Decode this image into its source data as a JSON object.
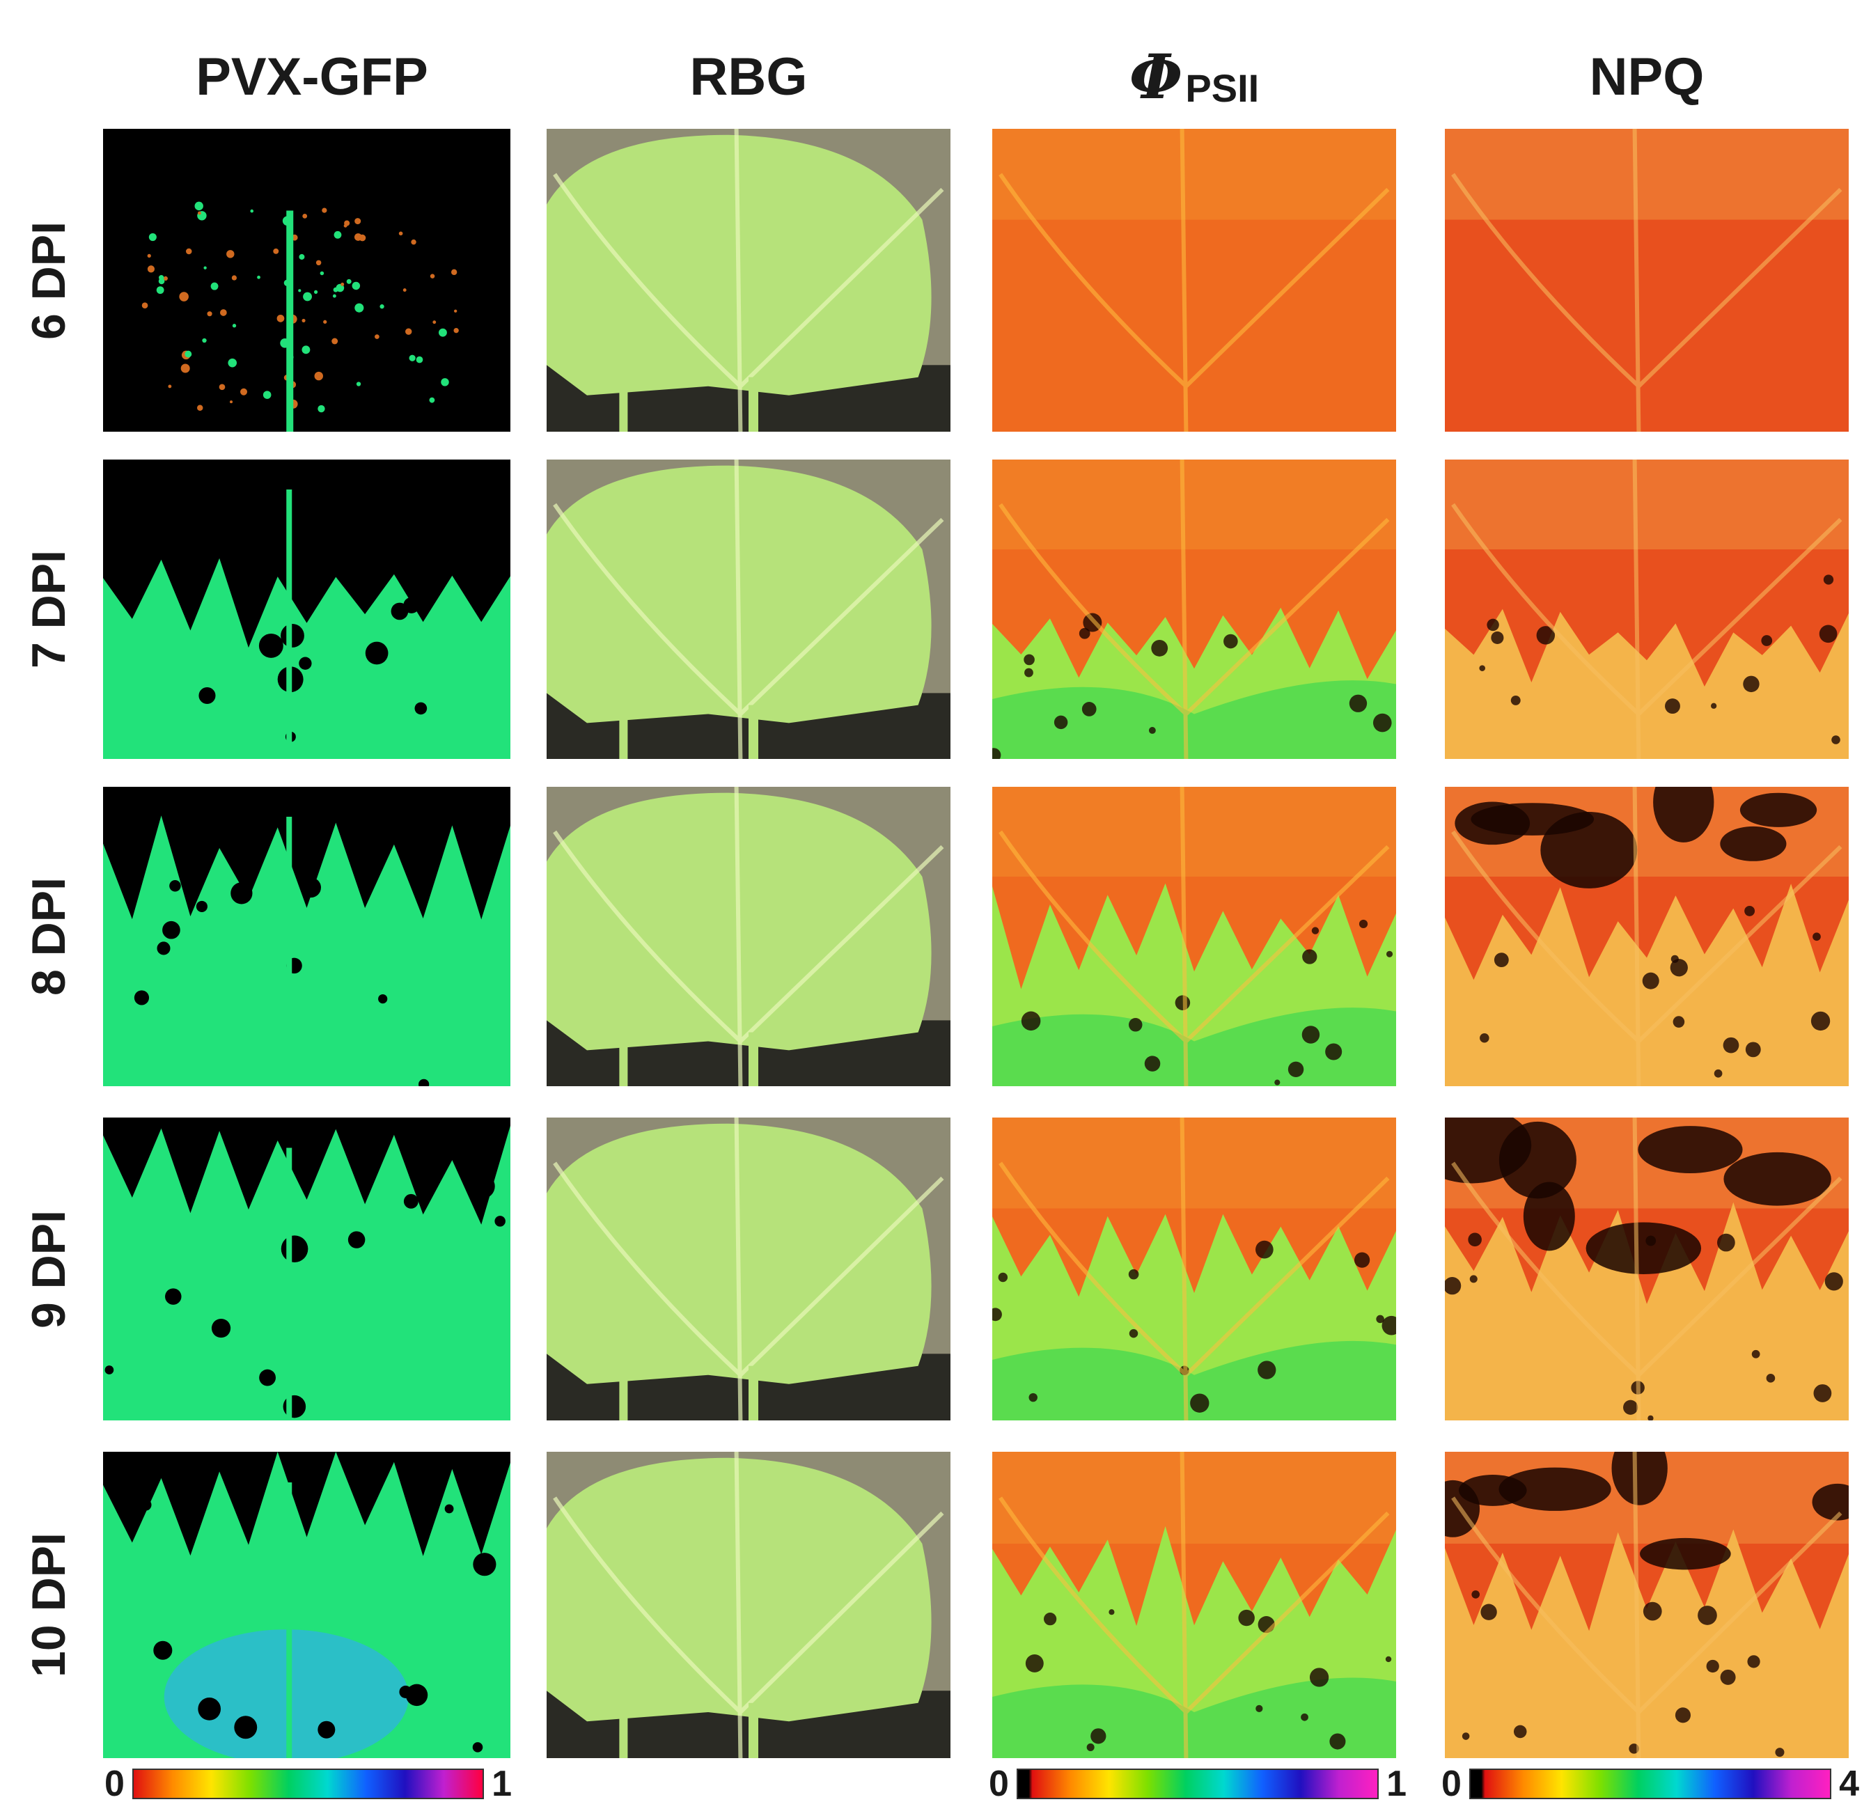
{
  "columns": [
    {
      "id": "pvx",
      "label": "PVX-GFP"
    },
    {
      "id": "rbg",
      "label": "RBG"
    },
    {
      "id": "phi",
      "label_symbol": "Φ",
      "label_sub": "PSII"
    },
    {
      "id": "npq",
      "label": "NPQ"
    }
  ],
  "rows": [
    "6 DPI",
    "7 DPI",
    "8 DPI",
    "9 DPI",
    "10 DPI"
  ],
  "infection_fraction": [
    0.25,
    0.55,
    0.72,
    0.8,
    0.84
  ],
  "colors": {
    "gfp_background": "#000000",
    "gfp_signal": "#22e27a",
    "leaf_green": "#b6e27a",
    "backdrop": "#8e8b74",
    "phi_healthy": "#ef6a1f",
    "phi_infected": "#9be54a",
    "npq_healthy": "#e8501e",
    "npq_infected": "#f4b44a"
  },
  "scales": {
    "pvx": {
      "min": "0",
      "max": "1"
    },
    "phi": {
      "min": "0",
      "max": "1"
    },
    "npq": {
      "min": "0",
      "max": "4"
    }
  }
}
